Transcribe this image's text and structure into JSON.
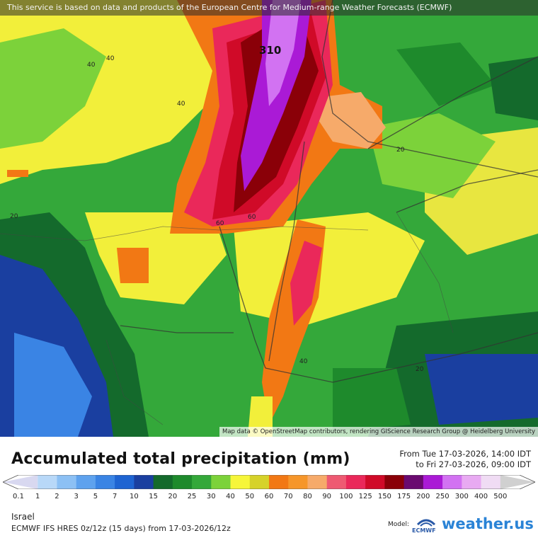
{
  "banner": {
    "text": "This service is based on data and products of the European Centre for Medium-range Weather Forecasts (ECMWF)"
  },
  "map": {
    "attribution": "Map data © OpenStreetMap contributors, rendering GIScience Research Group @ Heidelberg University",
    "labels": [
      "310",
      "40",
      "40",
      "40",
      "20",
      "20",
      "60",
      "60",
      "40",
      "20"
    ]
  },
  "header": {
    "title": "Accumulated total precipitation (mm)",
    "period_from": "From Tue 17-03-2026, 14:00 IDT",
    "period_to": "to Fri 27-03-2026, 09:00 IDT"
  },
  "legend": {
    "unit": "mm",
    "ticks": [
      "0.1",
      "1",
      "2",
      "3",
      "5",
      "7",
      "10",
      "15",
      "20",
      "25",
      "30",
      "40",
      "50",
      "60",
      "70",
      "80",
      "90",
      "100",
      "125",
      "150",
      "175",
      "200",
      "250",
      "300",
      "400",
      "500"
    ],
    "colors": [
      "#d8d8f0",
      "#b8d8f8",
      "#8cc0f4",
      "#5ea2ee",
      "#3a84e4",
      "#1e64d2",
      "#1a3fa0",
      "#146a2c",
      "#1e8a2c",
      "#34a83a",
      "#7cd23a",
      "#f6f63a",
      "#d6d22a",
      "#f27814",
      "#f6962a",
      "#f6aa6a",
      "#ee5a72",
      "#ea285a",
      "#d00a28",
      "#8a0008",
      "#6a0a70",
      "#aa1ad6",
      "#d272f2",
      "#e8aaf2",
      "#f0dcf4",
      "#d0d0d0"
    ]
  },
  "footer": {
    "region": "Israel",
    "model_run": "ECMWF IFS HRES 0z/12z (15 days) from  17-03-2026/12z",
    "model_label": "Model:",
    "ecmwf_text": "ECMWF",
    "brand": "weather.us"
  }
}
